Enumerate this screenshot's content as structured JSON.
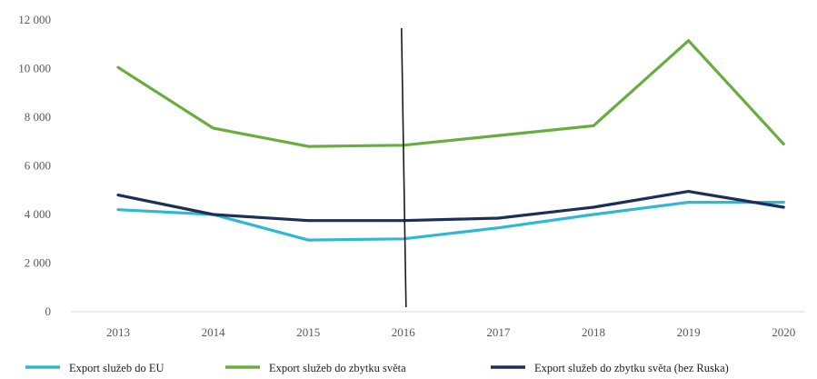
{
  "chart_data": {
    "type": "line",
    "title": "",
    "xlabel": "",
    "ylabel": "",
    "categories": [
      "2013",
      "2014",
      "2015",
      "2016",
      "2017",
      "2018",
      "2019",
      "2020"
    ],
    "ylim": [
      0,
      12000
    ],
    "yticks": [
      0,
      2000,
      4000,
      6000,
      8000,
      10000,
      12000
    ],
    "ytick_labels": [
      "0",
      "2 000",
      "4 000",
      "6 000",
      "8 000",
      "10 000",
      "12 000"
    ],
    "grid": false,
    "legend_position": "bottom",
    "vertical_marker_at": "2016",
    "series": [
      {
        "name": "Export služeb do EU",
        "color": "#2fb8d3",
        "values": [
          4200,
          4000,
          2950,
          3000,
          3450,
          4000,
          4500,
          4500
        ]
      },
      {
        "name": "Export služeb do zbytku světa",
        "color": "#6aad3f",
        "values": [
          10050,
          7550,
          6800,
          6850,
          7250,
          7650,
          11150,
          6900
        ]
      },
      {
        "name": "Export služeb do zbytku světa (bez Ruska)",
        "color": "#1b2f57",
        "values": [
          4800,
          4000,
          3750,
          3750,
          3850,
          4300,
          4950,
          4300
        ]
      }
    ]
  }
}
